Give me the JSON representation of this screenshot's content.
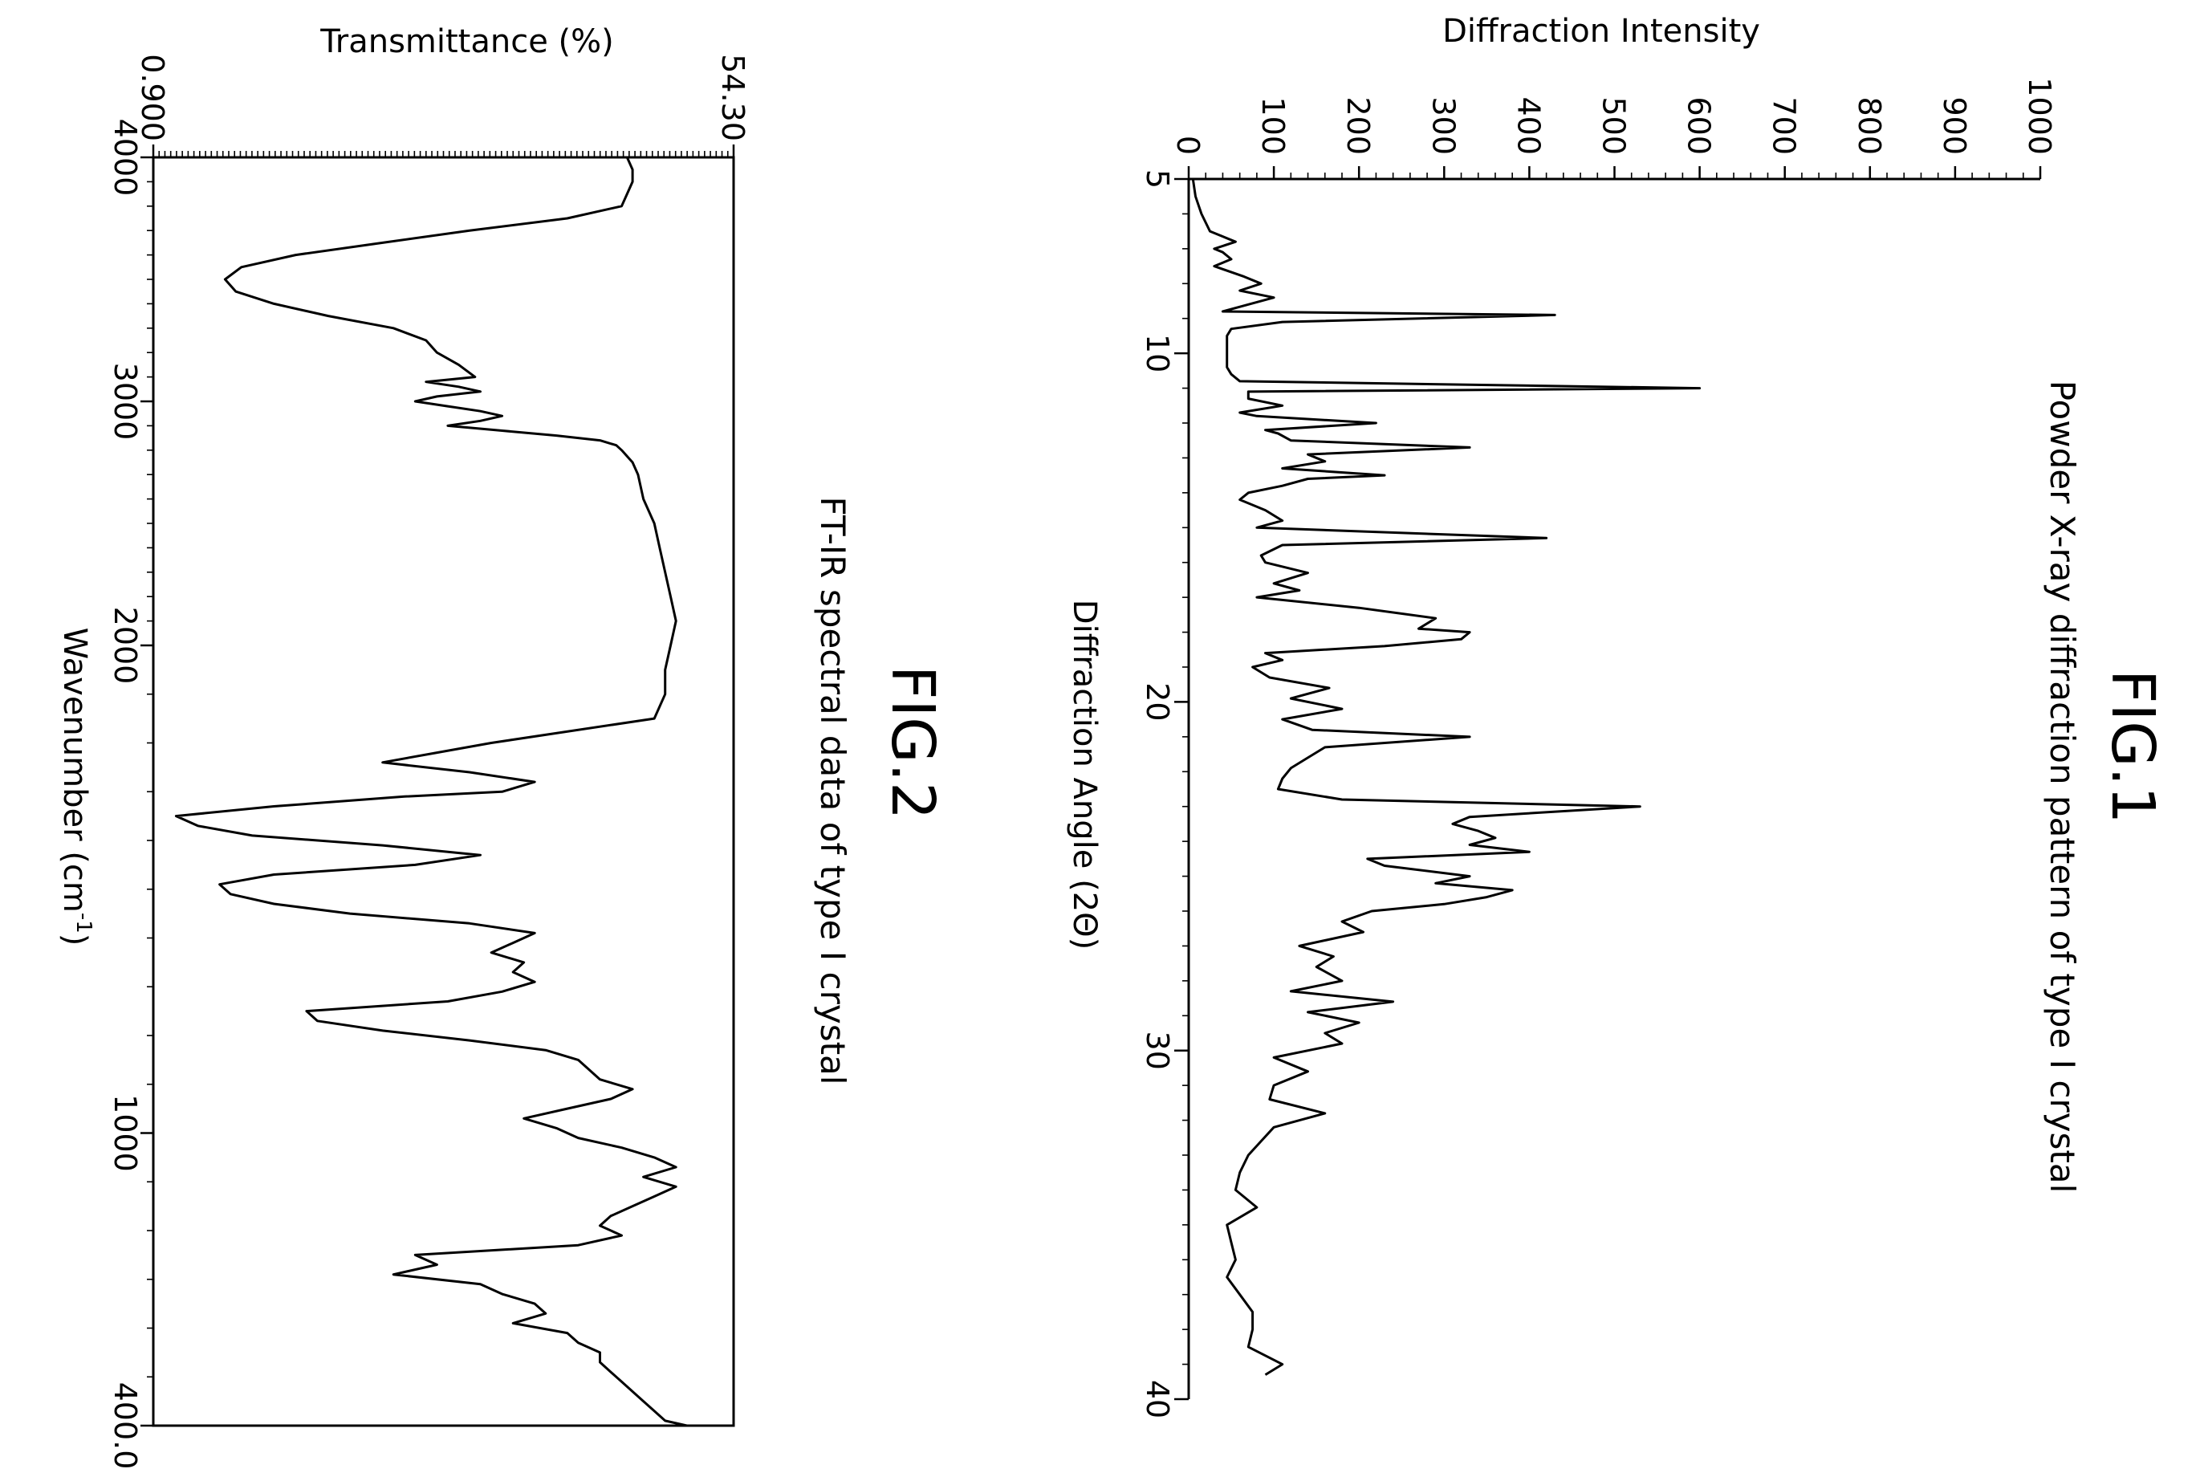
{
  "figures": [
    {
      "fig_label": "FIG.1",
      "caption": "Powder X-ray diffraction pattern of type I crystal",
      "ylabel": "Diffraction Intensity",
      "xlabel": "Diffraction Angle (2Θ)"
    },
    {
      "fig_label": "FIG.2",
      "caption": "FT-IR spectral data of type I crystal",
      "ylabel": "Transmittance (%)",
      "xlabel_main": "Wavenumber (cm",
      "xlabel_sup": "-1",
      "xlabel_close": ")"
    }
  ],
  "chart_data": [
    {
      "type": "line",
      "title": "Powder X-ray diffraction pattern of type I crystal",
      "xlabel": "Diffraction Angle (2Θ)",
      "ylabel": "Diffraction Intensity",
      "xlim": [
        5,
        40
      ],
      "ylim": [
        0,
        1000
      ],
      "x_ticks": [
        5,
        10,
        20,
        30,
        40
      ],
      "x_tick_labels": [
        "5",
        "10",
        "20",
        "30",
        "40"
      ],
      "y_ticks": [
        0,
        100,
        200,
        300,
        400,
        500,
        600,
        700,
        800,
        900,
        1000
      ],
      "y_tick_labels": [
        "0",
        "100",
        "200",
        "300",
        "400",
        "500",
        "600",
        "700",
        "800",
        "900",
        "1000"
      ],
      "grid": false,
      "legend": "none",
      "orientation": "rotated 90° clockwise",
      "series": [
        {
          "x": [
            5.0,
            5.5,
            6.0,
            6.5,
            6.8,
            7.0,
            7.1,
            7.3,
            7.5,
            7.8,
            8.0,
            8.2,
            8.4,
            8.6,
            8.8,
            8.9,
            9.1,
            9.3,
            9.5,
            9.6,
            9.8,
            10.0,
            10.2,
            10.4,
            10.6,
            10.8,
            11.0,
            11.1,
            11.3,
            11.5,
            11.7,
            11.8,
            12.0,
            12.2,
            12.3,
            12.5,
            12.7,
            12.9,
            13.1,
            13.3,
            13.5,
            13.6,
            13.8,
            14.0,
            14.2,
            14.5,
            14.8,
            15.0,
            15.3,
            15.5,
            15.8,
            16.0,
            16.3,
            16.6,
            16.8,
            17.0,
            17.3,
            17.6,
            17.9,
            18.0,
            18.2,
            18.4,
            18.6,
            18.8,
            19.0,
            19.3,
            19.6,
            19.9,
            20.2,
            20.5,
            20.8,
            21.0,
            21.3,
            21.6,
            21.9,
            22.2,
            22.5,
            22.8,
            23.0,
            23.3,
            23.5,
            23.7,
            23.9,
            24.1,
            24.3,
            24.5,
            24.7,
            25.0,
            25.2,
            25.4,
            25.6,
            25.8,
            26.0,
            26.3,
            26.6,
            27.0,
            27.3,
            27.6,
            28.0,
            28.3,
            28.6,
            28.9,
            29.2,
            29.5,
            29.8,
            30.2,
            30.6,
            31.0,
            31.4,
            31.8,
            32.2,
            32.6,
            33.0,
            33.5,
            34.0,
            34.5,
            35.0,
            35.5,
            36.0,
            36.5,
            37.0,
            37.5,
            38.0,
            38.5,
            39.0,
            39.3
          ],
          "y": [
            5,
            8,
            15,
            25,
            55,
            30,
            40,
            50,
            30,
            65,
            85,
            60,
            100,
            70,
            40,
            430,
            110,
            50,
            45,
            45,
            45,
            45,
            45,
            45,
            50,
            60,
            600,
            70,
            70,
            110,
            60,
            80,
            220,
            90,
            105,
            120,
            330,
            140,
            160,
            110,
            230,
            140,
            110,
            70,
            60,
            90,
            110,
            80,
            420,
            110,
            85,
            90,
            140,
            100,
            130,
            80,
            200,
            290,
            270,
            330,
            320,
            230,
            90,
            110,
            75,
            95,
            165,
            120,
            180,
            110,
            145,
            330,
            160,
            140,
            120,
            110,
            105,
            180,
            530,
            330,
            310,
            340,
            360,
            330,
            400,
            210,
            230,
            330,
            290,
            380,
            350,
            300,
            215,
            180,
            205,
            130,
            170,
            150,
            180,
            120,
            240,
            140,
            200,
            160,
            180,
            100,
            140,
            100,
            95,
            160,
            100,
            85,
            70,
            60,
            55,
            80,
            45,
            50,
            55,
            45,
            60,
            75,
            75,
            70,
            110,
            90
          ]
        }
      ]
    },
    {
      "type": "line",
      "title": "FT-IR spectral data of type I crystal",
      "xlabel": "Wavenumber (cm-1)",
      "ylabel": "Transmittance (%)",
      "xlim": [
        4000,
        400
      ],
      "ylim": [
        0.9,
        54.3
      ],
      "x_ticks": [
        4000,
        3000,
        2000,
        1000,
        400
      ],
      "x_tick_labels": [
        "4000",
        "3000",
        "2000",
        "1000",
        "400.0"
      ],
      "y_ticks": [
        0.9,
        54.3
      ],
      "y_tick_labels": [
        "0.900",
        "54.30"
      ],
      "grid": false,
      "legend": "none",
      "orientation": "rotated 90° clockwise",
      "series": [
        {
          "x": [
            4000,
            3950,
            3900,
            3850,
            3800,
            3750,
            3700,
            3650,
            3600,
            3550,
            3500,
            3450,
            3400,
            3350,
            3300,
            3250,
            3200,
            3150,
            3100,
            3080,
            3060,
            3040,
            3020,
            3000,
            2980,
            2960,
            2940,
            2920,
            2900,
            2880,
            2860,
            2840,
            2820,
            2800,
            2750,
            2700,
            2600,
            2500,
            2400,
            2300,
            2200,
            2100,
            2000,
            1950,
            1900,
            1850,
            1800,
            1780,
            1760,
            1740,
            1720,
            1700,
            1690,
            1670,
            1650,
            1630,
            1610,
            1590,
            1570,
            1550,
            1530,
            1510,
            1490,
            1470,
            1450,
            1430,
            1410,
            1390,
            1370,
            1350,
            1330,
            1310,
            1290,
            1270,
            1250,
            1230,
            1210,
            1190,
            1170,
            1150,
            1130,
            1110,
            1090,
            1070,
            1050,
            1030,
            1010,
            990,
            970,
            950,
            930,
            910,
            890,
            870,
            850,
            830,
            810,
            790,
            770,
            750,
            730,
            710,
            690,
            670,
            650,
            630,
            610,
            590,
            570,
            550,
            530,
            510,
            490,
            470,
            450,
            430,
            410,
            400
          ],
          "y": [
            44.5,
            45.0,
            45.0,
            44.5,
            44.0,
            39.0,
            30.0,
            22.0,
            14.0,
            9.0,
            7.5,
            8.5,
            12.0,
            17.0,
            23.0,
            26.0,
            27.0,
            29.0,
            30.5,
            26.0,
            29.0,
            31.0,
            27.0,
            25.0,
            28.0,
            31.0,
            33.0,
            31.0,
            28.0,
            33.0,
            38.0,
            42.0,
            43.5,
            44.0,
            45.0,
            45.5,
            46.0,
            47.0,
            47.5,
            48.0,
            48.5,
            49.0,
            48.5,
            48.0,
            48.0,
            47.0,
            32.0,
            27.0,
            22.0,
            30.0,
            36.0,
            33.0,
            24.0,
            12.0,
            3.0,
            5.0,
            10.0,
            22.0,
            31.0,
            25.0,
            12.0,
            7.0,
            8.0,
            12.0,
            19.0,
            30.0,
            36.0,
            34.0,
            32.0,
            35.0,
            34.0,
            36.0,
            33.0,
            28.0,
            15.0,
            16.0,
            22.0,
            30.0,
            37.0,
            40.0,
            41.0,
            42.0,
            45.0,
            43.0,
            39.0,
            35.0,
            38.0,
            40.0,
            44.0,
            47.0,
            49.0,
            46.0,
            49.0,
            47.0,
            45.0,
            43.0,
            42.0,
            44.0,
            40.0,
            25.0,
            27.0,
            23.0,
            31.0,
            33.0,
            36.0,
            37.0,
            34.0,
            39.0,
            40.0,
            42.0,
            42.0,
            43.0,
            44.0,
            45.0,
            46.0,
            47.0,
            48.0,
            50.0
          ]
        }
      ]
    }
  ]
}
